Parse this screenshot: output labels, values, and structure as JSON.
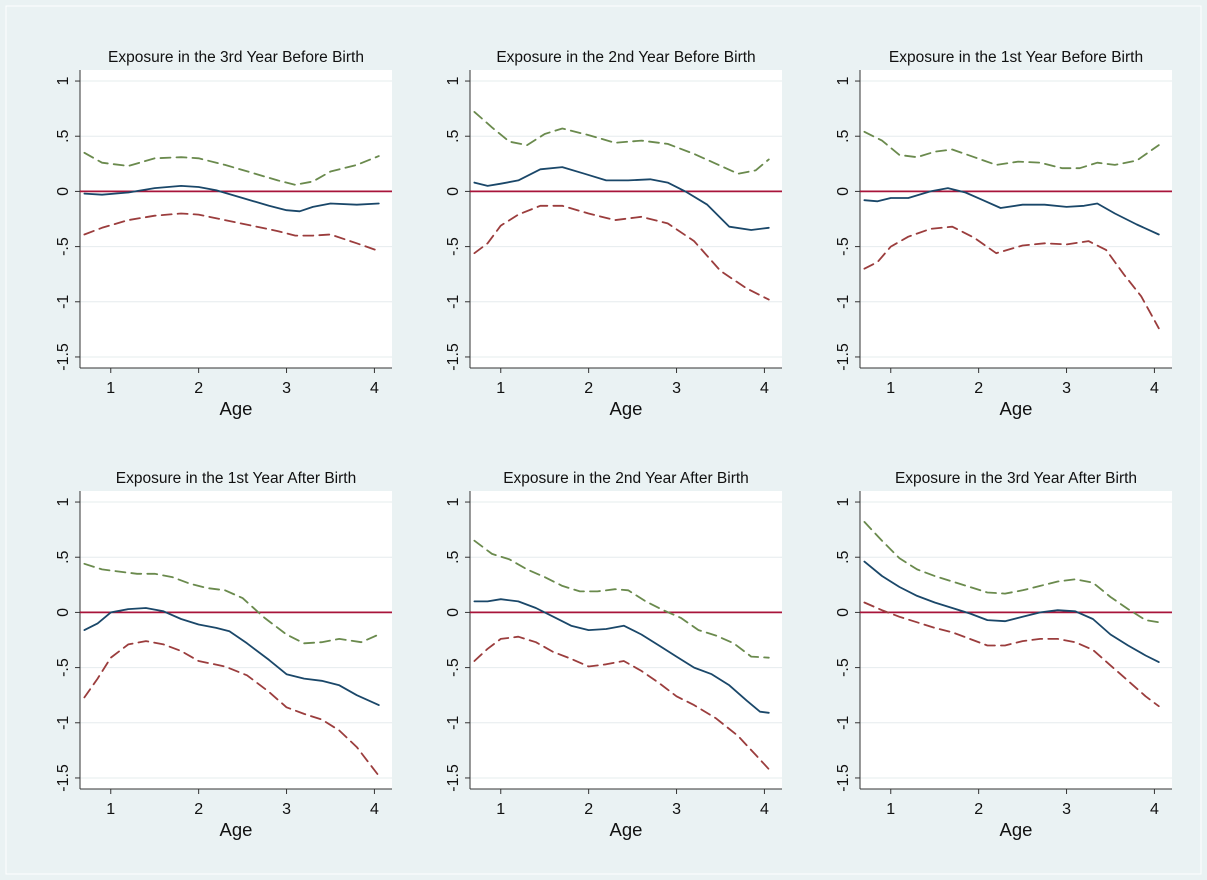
{
  "chart_data": [
    {
      "type": "line",
      "title": "Exposure in the 3rd Year Before Birth",
      "xlabel": "Age",
      "ylabel": "",
      "xlim": [
        0.65,
        4.2
      ],
      "ylim": [
        -1.6,
        1.1
      ],
      "x_ticks": [
        "1",
        "2",
        "3",
        "4"
      ],
      "y_ticks": [
        "-1.5",
        "-1",
        "-.5",
        "0",
        ".5",
        "1"
      ],
      "reference_line": 0,
      "series": [
        {
          "role": "estimate",
          "style": "solid",
          "color": "#1a4769",
          "x": [
            0.7,
            0.9,
            1.2,
            1.5,
            1.8,
            2.0,
            2.2,
            2.5,
            2.8,
            3.0,
            3.15,
            3.3,
            3.5,
            3.8,
            4.05
          ],
          "y": [
            -0.02,
            -0.03,
            -0.01,
            0.03,
            0.05,
            0.04,
            0.01,
            -0.06,
            -0.13,
            -0.17,
            -0.18,
            -0.14,
            -0.11,
            -0.12,
            -0.11
          ]
        },
        {
          "role": "upper",
          "style": "dash",
          "color": "#6a8a4d",
          "x": [
            0.7,
            0.9,
            1.2,
            1.5,
            1.8,
            2.0,
            2.3,
            2.6,
            2.9,
            3.1,
            3.3,
            3.5,
            3.8,
            4.05
          ],
          "y": [
            0.35,
            0.26,
            0.23,
            0.3,
            0.31,
            0.3,
            0.24,
            0.17,
            0.1,
            0.06,
            0.09,
            0.18,
            0.24,
            0.32
          ]
        },
        {
          "role": "lower",
          "style": "dash",
          "color": "#9b3d3d",
          "x": [
            0.7,
            0.9,
            1.2,
            1.5,
            1.8,
            2.0,
            2.3,
            2.6,
            2.9,
            3.1,
            3.3,
            3.5,
            3.8,
            4.05
          ],
          "y": [
            -0.39,
            -0.33,
            -0.26,
            -0.22,
            -0.2,
            -0.21,
            -0.26,
            -0.31,
            -0.36,
            -0.4,
            -0.4,
            -0.39,
            -0.47,
            -0.54
          ]
        }
      ]
    },
    {
      "type": "line",
      "title": "Exposure in the 2nd Year Before Birth",
      "xlabel": "Age",
      "ylabel": "",
      "xlim": [
        0.65,
        4.2
      ],
      "ylim": [
        -1.6,
        1.1
      ],
      "x_ticks": [
        "1",
        "2",
        "3",
        "4"
      ],
      "y_ticks": [
        "-1.5",
        "-1",
        "-.5",
        "0",
        ".5",
        "1"
      ],
      "reference_line": 0,
      "series": [
        {
          "role": "estimate",
          "style": "solid",
          "color": "#1a4769",
          "x": [
            0.7,
            0.85,
            1.0,
            1.2,
            1.45,
            1.7,
            1.95,
            2.2,
            2.45,
            2.7,
            2.9,
            3.1,
            3.35,
            3.6,
            3.85,
            4.05
          ],
          "y": [
            0.08,
            0.05,
            0.07,
            0.1,
            0.2,
            0.22,
            0.16,
            0.1,
            0.1,
            0.11,
            0.08,
            0.0,
            -0.12,
            -0.32,
            -0.35,
            -0.33
          ]
        },
        {
          "role": "upper",
          "style": "dash",
          "color": "#6a8a4d",
          "x": [
            0.7,
            0.9,
            1.1,
            1.3,
            1.5,
            1.7,
            2.0,
            2.3,
            2.6,
            2.9,
            3.2,
            3.45,
            3.7,
            3.9,
            4.05
          ],
          "y": [
            0.72,
            0.58,
            0.45,
            0.42,
            0.52,
            0.57,
            0.51,
            0.44,
            0.46,
            0.43,
            0.34,
            0.25,
            0.16,
            0.19,
            0.29
          ]
        },
        {
          "role": "lower",
          "style": "dash",
          "color": "#9b3d3d",
          "x": [
            0.7,
            0.85,
            1.0,
            1.2,
            1.45,
            1.7,
            2.0,
            2.3,
            2.6,
            2.9,
            3.2,
            3.5,
            3.8,
            4.05
          ],
          "y": [
            -0.56,
            -0.47,
            -0.31,
            -0.21,
            -0.13,
            -0.13,
            -0.2,
            -0.26,
            -0.23,
            -0.29,
            -0.45,
            -0.72,
            -0.88,
            -0.98
          ]
        }
      ]
    },
    {
      "type": "line",
      "title": "Exposure in the 1st Year Before Birth",
      "xlabel": "Age",
      "ylabel": "",
      "xlim": [
        0.65,
        4.2
      ],
      "ylim": [
        -1.6,
        1.1
      ],
      "x_ticks": [
        "1",
        "2",
        "3",
        "4"
      ],
      "y_ticks": [
        "-1.5",
        "-1",
        "-.5",
        "0",
        ".5",
        "1"
      ],
      "reference_line": 0,
      "series": [
        {
          "role": "estimate",
          "style": "solid",
          "color": "#1a4769",
          "x": [
            0.7,
            0.85,
            1.0,
            1.2,
            1.45,
            1.65,
            1.85,
            2.05,
            2.25,
            2.5,
            2.75,
            3.0,
            3.2,
            3.35,
            3.55,
            3.8,
            4.05
          ],
          "y": [
            -0.08,
            -0.09,
            -0.06,
            -0.06,
            0.0,
            0.03,
            -0.01,
            -0.08,
            -0.15,
            -0.12,
            -0.12,
            -0.14,
            -0.13,
            -0.11,
            -0.2,
            -0.3,
            -0.39
          ]
        },
        {
          "role": "upper",
          "style": "dash",
          "color": "#6a8a4d",
          "x": [
            0.7,
            0.9,
            1.1,
            1.3,
            1.5,
            1.7,
            1.95,
            2.2,
            2.45,
            2.7,
            2.95,
            3.15,
            3.35,
            3.55,
            3.8,
            4.05
          ],
          "y": [
            0.54,
            0.46,
            0.33,
            0.31,
            0.36,
            0.38,
            0.31,
            0.24,
            0.27,
            0.26,
            0.21,
            0.21,
            0.26,
            0.24,
            0.28,
            0.42
          ]
        },
        {
          "role": "lower",
          "style": "dash",
          "color": "#9b3d3d",
          "x": [
            0.7,
            0.85,
            1.0,
            1.2,
            1.45,
            1.7,
            1.95,
            2.2,
            2.5,
            2.75,
            3.0,
            3.25,
            3.45,
            3.65,
            3.85,
            4.05
          ],
          "y": [
            -0.7,
            -0.64,
            -0.5,
            -0.41,
            -0.34,
            -0.32,
            -0.42,
            -0.56,
            -0.49,
            -0.47,
            -0.48,
            -0.45,
            -0.53,
            -0.75,
            -0.95,
            -1.24
          ]
        }
      ]
    },
    {
      "type": "line",
      "title": "Exposure in the 1st Year After Birth",
      "xlabel": "Age",
      "ylabel": "",
      "xlim": [
        0.65,
        4.2
      ],
      "ylim": [
        -1.6,
        1.1
      ],
      "x_ticks": [
        "1",
        "2",
        "3",
        "4"
      ],
      "y_ticks": [
        "-1.5",
        "-1",
        "-.5",
        "0",
        ".5",
        "1"
      ],
      "reference_line": 0,
      "series": [
        {
          "role": "estimate",
          "style": "solid",
          "color": "#1a4769",
          "x": [
            0.7,
            0.85,
            1.0,
            1.2,
            1.4,
            1.6,
            1.8,
            2.0,
            2.2,
            2.35,
            2.55,
            2.8,
            3.0,
            3.2,
            3.4,
            3.6,
            3.8,
            4.05
          ],
          "y": [
            -0.16,
            -0.1,
            0.0,
            0.03,
            0.04,
            0.01,
            -0.06,
            -0.11,
            -0.14,
            -0.17,
            -0.28,
            -0.43,
            -0.56,
            -0.6,
            -0.62,
            -0.66,
            -0.75,
            -0.84
          ]
        },
        {
          "role": "upper",
          "style": "dash",
          "color": "#6a8a4d",
          "x": [
            0.7,
            0.9,
            1.1,
            1.3,
            1.5,
            1.7,
            1.9,
            2.1,
            2.3,
            2.5,
            2.75,
            3.0,
            3.2,
            3.4,
            3.6,
            3.85,
            4.05
          ],
          "y": [
            0.44,
            0.39,
            0.37,
            0.35,
            0.35,
            0.32,
            0.26,
            0.22,
            0.2,
            0.13,
            -0.05,
            -0.2,
            -0.28,
            -0.27,
            -0.24,
            -0.27,
            -0.2
          ]
        },
        {
          "role": "lower",
          "style": "dash",
          "color": "#9b3d3d",
          "x": [
            0.7,
            0.85,
            1.0,
            1.2,
            1.4,
            1.6,
            1.8,
            2.0,
            2.3,
            2.55,
            2.8,
            3.0,
            3.2,
            3.4,
            3.6,
            3.8,
            4.05
          ],
          "y": [
            -0.77,
            -0.6,
            -0.41,
            -0.29,
            -0.26,
            -0.29,
            -0.35,
            -0.44,
            -0.49,
            -0.57,
            -0.72,
            -0.86,
            -0.92,
            -0.97,
            -1.07,
            -1.22,
            -1.48
          ]
        }
      ]
    },
    {
      "type": "line",
      "title": "Exposure in the 2nd Year After Birth",
      "xlabel": "Age",
      "ylabel": "",
      "xlim": [
        0.65,
        4.2
      ],
      "ylim": [
        -1.6,
        1.1
      ],
      "x_ticks": [
        "1",
        "2",
        "3",
        "4"
      ],
      "y_ticks": [
        "-1.5",
        "-1",
        "-.5",
        "0",
        ".5",
        "1"
      ],
      "reference_line": 0,
      "series": [
        {
          "role": "estimate",
          "style": "solid",
          "color": "#1a4769",
          "x": [
            0.7,
            0.85,
            1.0,
            1.2,
            1.4,
            1.6,
            1.8,
            2.0,
            2.2,
            2.4,
            2.6,
            2.8,
            3.0,
            3.2,
            3.4,
            3.6,
            3.8,
            3.95,
            4.05
          ],
          "y": [
            0.1,
            0.1,
            0.12,
            0.1,
            0.04,
            -0.04,
            -0.12,
            -0.16,
            -0.15,
            -0.12,
            -0.2,
            -0.3,
            -0.4,
            -0.5,
            -0.56,
            -0.66,
            -0.8,
            -0.9,
            -0.91
          ]
        },
        {
          "role": "upper",
          "style": "dash",
          "color": "#6a8a4d",
          "x": [
            0.7,
            0.9,
            1.1,
            1.3,
            1.5,
            1.7,
            1.9,
            2.1,
            2.3,
            2.45,
            2.65,
            2.85,
            3.05,
            3.25,
            3.45,
            3.65,
            3.85,
            4.05
          ],
          "y": [
            0.65,
            0.53,
            0.48,
            0.39,
            0.32,
            0.24,
            0.19,
            0.19,
            0.21,
            0.2,
            0.1,
            0.02,
            -0.05,
            -0.16,
            -0.21,
            -0.28,
            -0.4,
            -0.41
          ]
        },
        {
          "role": "lower",
          "style": "dash",
          "color": "#9b3d3d",
          "x": [
            0.7,
            0.85,
            1.0,
            1.2,
            1.4,
            1.6,
            1.8,
            2.0,
            2.2,
            2.4,
            2.6,
            2.8,
            3.0,
            3.2,
            3.45,
            3.7,
            3.9,
            4.05
          ],
          "y": [
            -0.44,
            -0.33,
            -0.24,
            -0.22,
            -0.27,
            -0.36,
            -0.42,
            -0.49,
            -0.47,
            -0.44,
            -0.53,
            -0.64,
            -0.76,
            -0.84,
            -0.96,
            -1.12,
            -1.29,
            -1.42
          ]
        }
      ]
    },
    {
      "type": "line",
      "title": "Exposure in the 3rd Year After Birth",
      "xlabel": "Age",
      "ylabel": "",
      "xlim": [
        0.65,
        4.2
      ],
      "ylim": [
        -1.6,
        1.1
      ],
      "x_ticks": [
        "1",
        "2",
        "3",
        "4"
      ],
      "y_ticks": [
        "-1.5",
        "-1",
        "-.5",
        "0",
        ".5",
        "1"
      ],
      "reference_line": 0,
      "series": [
        {
          "role": "estimate",
          "style": "solid",
          "color": "#1a4769",
          "x": [
            0.7,
            0.9,
            1.1,
            1.3,
            1.5,
            1.7,
            1.9,
            2.1,
            2.3,
            2.5,
            2.7,
            2.9,
            3.1,
            3.3,
            3.5,
            3.7,
            3.9,
            4.05
          ],
          "y": [
            0.46,
            0.33,
            0.23,
            0.15,
            0.09,
            0.04,
            -0.01,
            -0.07,
            -0.08,
            -0.04,
            0.0,
            0.02,
            0.01,
            -0.06,
            -0.2,
            -0.3,
            -0.39,
            -0.45
          ]
        },
        {
          "role": "upper",
          "style": "dash",
          "color": "#6a8a4d",
          "x": [
            0.7,
            0.9,
            1.1,
            1.3,
            1.5,
            1.7,
            1.9,
            2.1,
            2.3,
            2.5,
            2.7,
            2.9,
            3.1,
            3.3,
            3.5,
            3.7,
            3.9,
            4.05
          ],
          "y": [
            0.82,
            0.65,
            0.49,
            0.39,
            0.33,
            0.28,
            0.23,
            0.18,
            0.17,
            0.2,
            0.24,
            0.28,
            0.3,
            0.27,
            0.14,
            0.03,
            -0.07,
            -0.09
          ]
        },
        {
          "role": "lower",
          "style": "dash",
          "color": "#9b3d3d",
          "x": [
            0.7,
            0.9,
            1.1,
            1.3,
            1.5,
            1.7,
            1.9,
            2.1,
            2.3,
            2.5,
            2.7,
            2.9,
            3.1,
            3.3,
            3.5,
            3.7,
            3.9,
            4.05
          ],
          "y": [
            0.09,
            0.02,
            -0.04,
            -0.09,
            -0.14,
            -0.18,
            -0.24,
            -0.3,
            -0.3,
            -0.26,
            -0.24,
            -0.24,
            -0.27,
            -0.34,
            -0.48,
            -0.62,
            -0.76,
            -0.85
          ]
        }
      ]
    }
  ]
}
